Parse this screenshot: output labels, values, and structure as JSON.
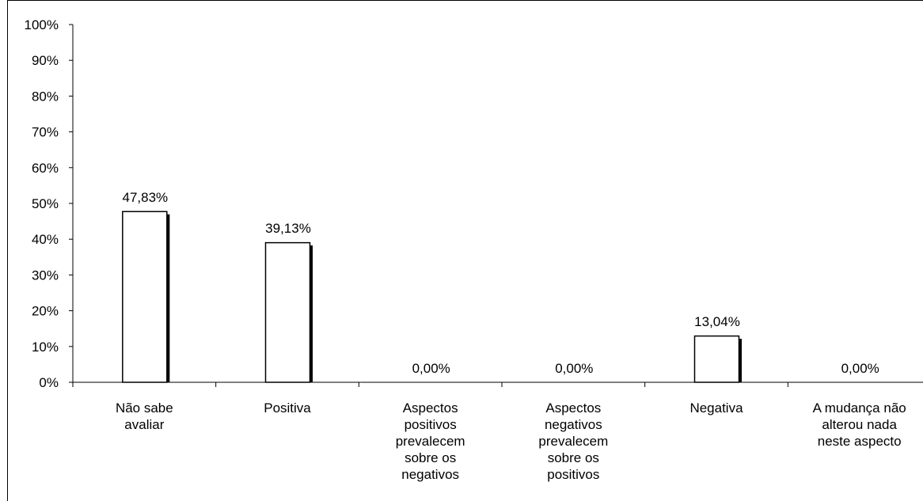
{
  "chart_data": {
    "type": "bar",
    "categories": [
      [
        "Não sabe",
        "avaliar"
      ],
      [
        "Positiva"
      ],
      [
        "Aspectos",
        "positivos",
        "prevalecem",
        "sobre os",
        "negativos"
      ],
      [
        "Aspectos",
        "negativos",
        "prevalecem",
        "sobre os",
        "positivos"
      ],
      [
        "Negativa"
      ],
      [
        "A mudança não",
        "alterou nada",
        "neste aspecto"
      ]
    ],
    "values": [
      47.83,
      39.13,
      0.0,
      0.0,
      13.04,
      0.0
    ],
    "data_labels": [
      "47,83%",
      "39,13%",
      "0,00%",
      "0,00%",
      "13,04%",
      "0,00%"
    ],
    "y_ticks": [
      "0%",
      "10%",
      "20%",
      "30%",
      "40%",
      "50%",
      "60%",
      "70%",
      "80%",
      "90%",
      "100%"
    ],
    "ylim": [
      0,
      100
    ],
    "grid": false,
    "legend": "none",
    "title": "",
    "xlabel": "",
    "ylabel": "",
    "colors": {
      "bar_fill": "#ffffff",
      "bar_stroke": "#000000",
      "bar_shadow": "#000000",
      "axis": "#000000",
      "frame": "#000000"
    }
  }
}
